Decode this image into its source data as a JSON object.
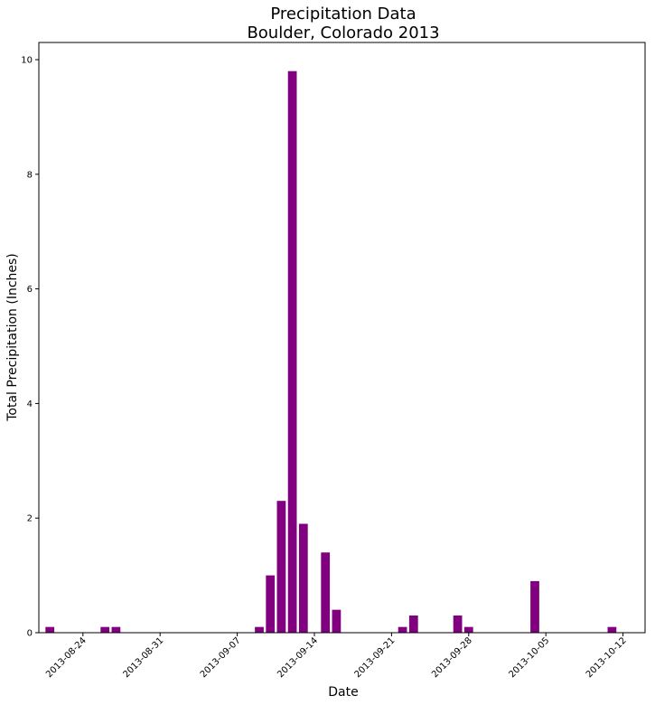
{
  "chart_data": {
    "type": "bar",
    "title": "Precipitation Data\nBoulder, Colorado 2013",
    "title_lines": [
      "Precipitation Data",
      "Boulder, Colorado 2013"
    ],
    "xlabel": "Date",
    "ylabel": "Total Precipitation (Inches)",
    "bar_color": "#800080",
    "xlim": [
      "2013-08-20",
      "2013-10-14"
    ],
    "ylim": [
      0,
      10.3
    ],
    "x_ticks": [
      "2013-08-24",
      "2013-08-31",
      "2013-09-07",
      "2013-09-14",
      "2013-09-21",
      "2013-09-28",
      "2013-10-05",
      "2013-10-12"
    ],
    "y_ticks": [
      0,
      2,
      4,
      6,
      8,
      10
    ],
    "grid": false,
    "legend": "none",
    "series": [
      {
        "x": [
          "2013-08-21",
          "2013-08-26",
          "2013-08-27",
          "2013-09-09",
          "2013-09-10",
          "2013-09-11",
          "2013-09-12",
          "2013-09-13",
          "2013-09-15",
          "2013-09-16",
          "2013-09-22",
          "2013-09-23",
          "2013-09-27",
          "2013-09-28",
          "2013-10-04",
          "2013-10-11"
        ],
        "values": [
          0.1,
          0.1,
          0.1,
          0.1,
          1.0,
          2.3,
          9.8,
          1.9,
          1.4,
          0.4,
          0.1,
          0.3,
          0.3,
          0.1,
          0.9,
          0.1
        ]
      }
    ]
  }
}
